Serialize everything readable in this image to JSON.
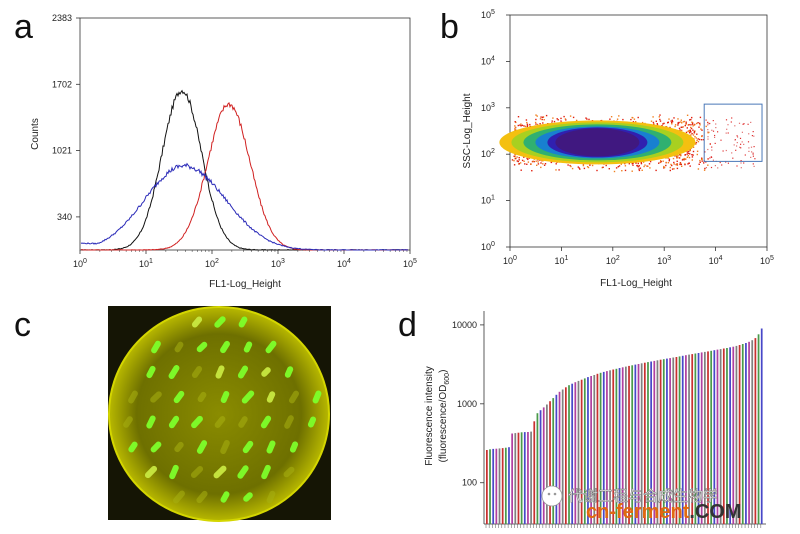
{
  "colors": {
    "black": "#111111",
    "red": "#d02020",
    "blue": "#2a2ab8",
    "gate": "#4a78b8",
    "colony": "#7dff2a",
    "plate": "#b5b800"
  },
  "chart_data": [
    {
      "panel": "a",
      "type": "line",
      "xlabel": "FL1-Log_Height",
      "ylabel": "Counts",
      "xscale": "log",
      "xlim": [
        1,
        100000
      ],
      "xticks": [
        "10",
        "10",
        "10",
        "10",
        "10",
        "10"
      ],
      "xtick_exps": [
        "0",
        "1",
        "2",
        "3",
        "4",
        "5"
      ],
      "ylim": [
        0,
        2383
      ],
      "yticks": [
        "340",
        "1021",
        "1702",
        "2383"
      ],
      "series": [
        {
          "name": "black",
          "color": "#111111",
          "peak_x": 35,
          "peak_y": 1640,
          "width": 0.3
        },
        {
          "name": "red",
          "color": "#d02020",
          "peak_x": 180,
          "peak_y": 1500,
          "width": 0.32
        },
        {
          "name": "blue",
          "color": "#2a2ab8",
          "peak_x": 30,
          "peak_y": 840,
          "width": 0.55
        }
      ]
    },
    {
      "panel": "b",
      "type": "scatter",
      "xlabel": "FL1-Log_Height",
      "ylabel": "SSC-Log_Height",
      "xscale": "log",
      "yscale": "log",
      "xlim": [
        1,
        100000
      ],
      "ylim": [
        1,
        100000
      ],
      "xticks": [
        "10",
        "10",
        "10",
        "10",
        "10",
        "10"
      ],
      "xtick_exps": [
        "0",
        "1",
        "2",
        "3",
        "4",
        "5"
      ],
      "yticks": [
        "10",
        "10",
        "10",
        "10",
        "10",
        "10"
      ],
      "ytick_exps": [
        "0",
        "1",
        "2",
        "3",
        "4",
        "5"
      ],
      "density_center": {
        "x": 60,
        "y": 180
      },
      "gate": {
        "x": [
          6000,
          80000
        ],
        "y": [
          70,
          1200
        ]
      }
    },
    {
      "panel": "d",
      "type": "bar",
      "ylabel_line1": "Fluorescence intensity",
      "ylabel_line2": "(fluorescence/OD",
      "ylabel_sub": "600",
      "ylabel_end": ")",
      "yscale": "log",
      "ylim": [
        30,
        15000
      ],
      "yticks": [
        "100",
        "1000",
        "10000"
      ],
      "bar_count": 88,
      "values": [
        260,
        265,
        268,
        270,
        272,
        275,
        278,
        282,
        420,
        425,
        430,
        435,
        438,
        440,
        445,
        600,
        760,
        830,
        900,
        980,
        1080,
        1180,
        1300,
        1420,
        1520,
        1620,
        1720,
        1800,
        1880,
        1950,
        2020,
        2100,
        2180,
        2250,
        2320,
        2400,
        2470,
        2540,
        2600,
        2660,
        2720,
        2780,
        2840,
        2900,
        2960,
        3020,
        3080,
        3140,
        3200,
        3260,
        3320,
        3380,
        3440,
        3500,
        3560,
        3620,
        3680,
        3740,
        3800,
        3860,
        3920,
        3990,
        4060,
        4130,
        4200,
        4270,
        4340,
        4410,
        4480,
        4550,
        4620,
        4700,
        4780,
        4860,
        4940,
        5020,
        5100,
        5200,
        5300,
        5420,
        5560,
        5720,
        5900,
        6100,
        6400,
        6800,
        7600,
        9000
      ],
      "bar_colors": [
        "#c83030",
        "#4a9a4a",
        "#4848c8",
        "#b040a0",
        "#808080"
      ]
    }
  ],
  "panels": {
    "a": "a",
    "b": "b",
    "c": "c",
    "d": "d"
  },
  "watermark": {
    "cn_text": "代谢工程与合成生物学",
    "prefix": "cn-",
    "main": "ferment",
    "suffix": ".COM"
  }
}
